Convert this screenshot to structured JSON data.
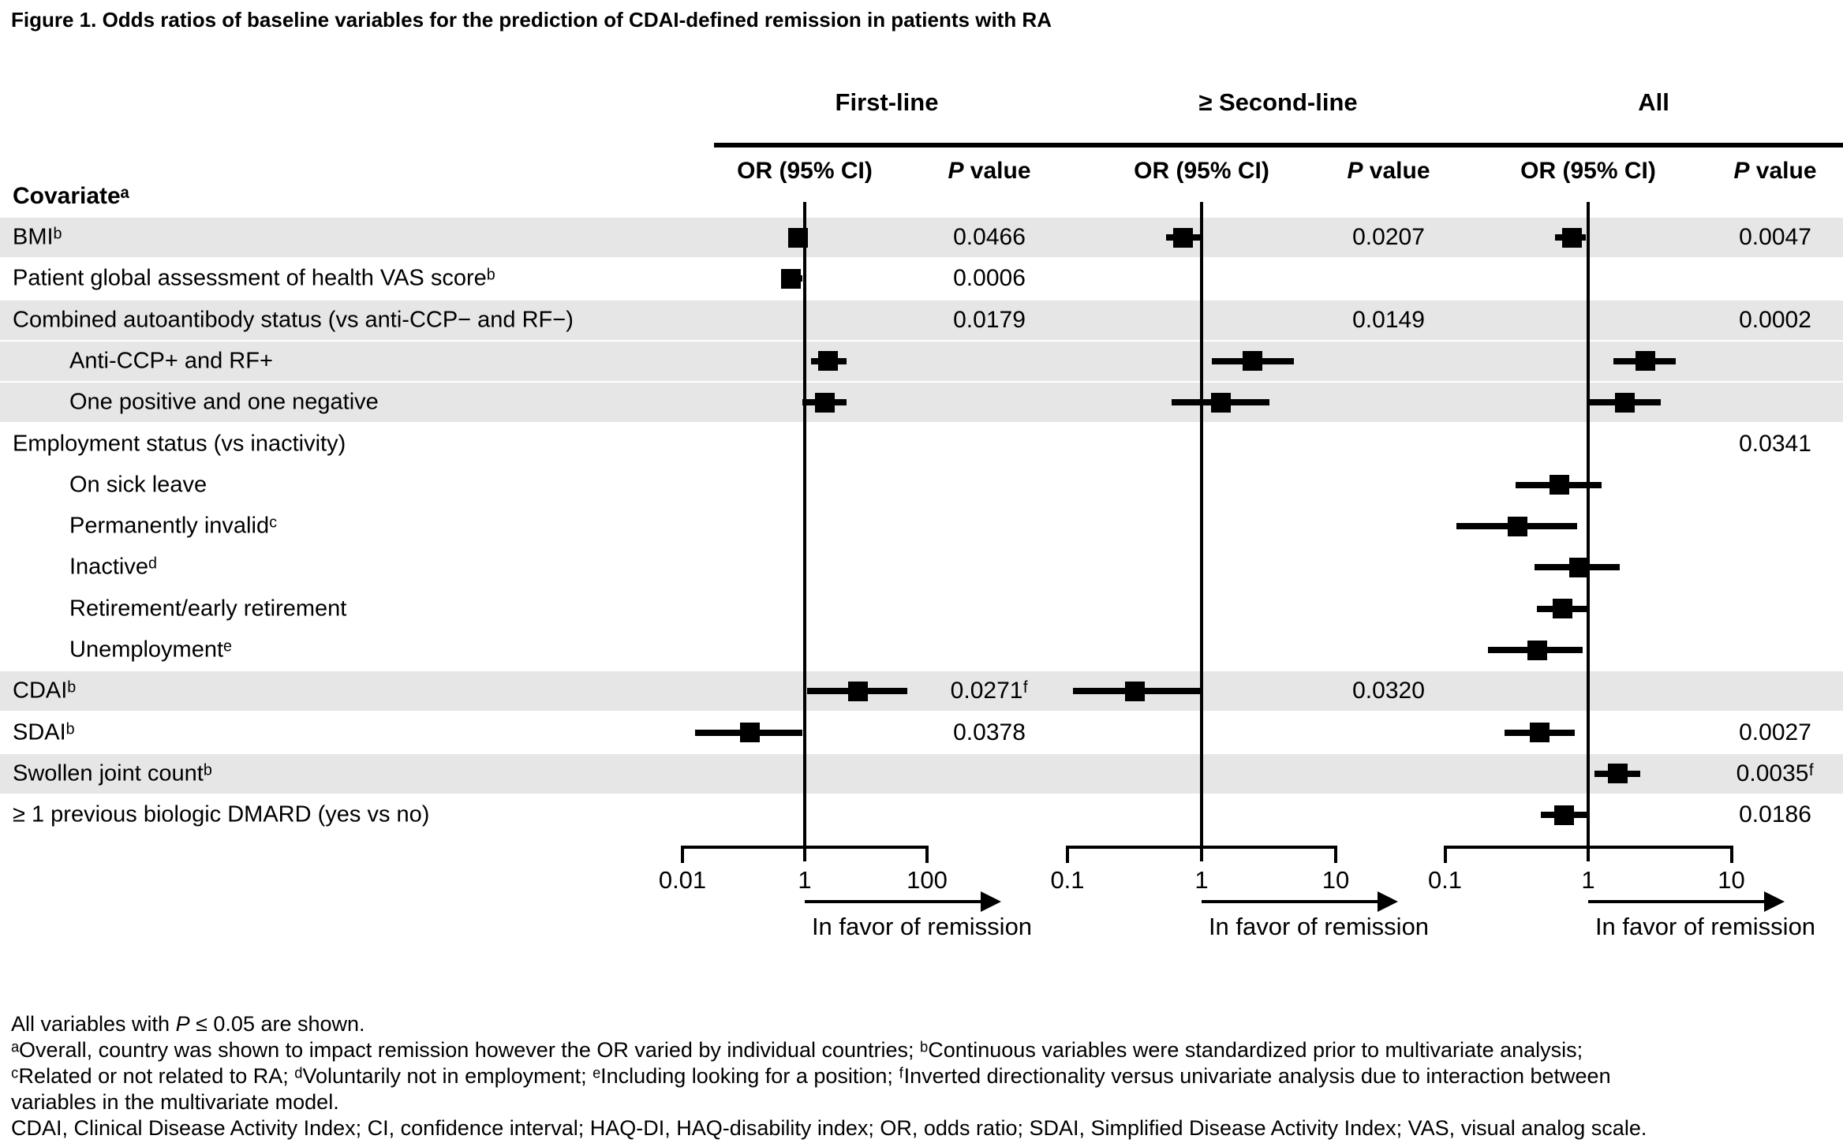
{
  "title": "Figure 1. Odds ratios of baseline variables for the prediction of CDAI-defined remission in patients with RA",
  "table_header": {
    "covariate": "Covariateᵃ",
    "or_label": "OR (95% CI)",
    "p_italic": "P",
    "p_rest": " value"
  },
  "chart_data": {
    "type": "forest",
    "title": "Odds ratios of baseline variables for the prediction of CDAI-defined remission in patients with RA",
    "stripe_color": "#e6e6e6",
    "marker_color": "#000000",
    "panels": [
      {
        "key": "first_line",
        "label": "First-line",
        "axis_range": [
          0.01,
          100
        ],
        "ticks": [
          0.01,
          1,
          100
        ],
        "tick_labels": [
          "0.01",
          "1",
          "100"
        ],
        "arrow_label": "In favor of remission"
      },
      {
        "key": "second_line",
        "label": "≥ Second-line",
        "axis_range": [
          0.1,
          10
        ],
        "ticks": [
          0.1,
          1,
          10
        ],
        "tick_labels": [
          "0.1",
          "1",
          "10"
        ],
        "arrow_label": "In favor of remission"
      },
      {
        "key": "all",
        "label": "All",
        "axis_range": [
          0.1,
          10
        ],
        "ticks": [
          0.1,
          1,
          10
        ],
        "tick_labels": [
          "0.1",
          "1",
          "10"
        ],
        "arrow_label": "In favor of remission"
      }
    ],
    "rows": [
      {
        "label": "BMIᵇ",
        "indent": false,
        "shaded": true,
        "first_line": {
          "or": 0.78,
          "lo": 0.55,
          "hi": 1.03,
          "p": "0.0466"
        },
        "second_line": {
          "or": 0.73,
          "lo": 0.54,
          "hi": 0.99,
          "p": "0.0207"
        },
        "all": {
          "or": 0.77,
          "lo": 0.59,
          "hi": 0.96,
          "p": "0.0047"
        }
      },
      {
        "label": "Patient global assessment of health VAS scoreᵇ",
        "indent": false,
        "shaded": false,
        "first_line": {
          "or": 0.59,
          "lo": 0.41,
          "hi": 0.92,
          "p": "0.0006"
        }
      },
      {
        "label": "Combined autoantibody status (vs anti-CCP− and RF−)",
        "indent": false,
        "shaded": true,
        "first_line": {
          "p": "0.0179"
        },
        "second_line": {
          "p": "0.0149"
        },
        "all": {
          "p": "0.0002"
        }
      },
      {
        "label": "Anti-CCP+ and RF+",
        "indent": true,
        "shaded": true,
        "first_line": {
          "or": 2.4,
          "lo": 1.25,
          "hi": 4.8
        },
        "second_line": {
          "or": 2.4,
          "lo": 1.2,
          "hi": 4.9
        },
        "all": {
          "or": 2.5,
          "lo": 1.5,
          "hi": 4.1
        }
      },
      {
        "label": "One positive and one negative",
        "indent": true,
        "shaded": true,
        "first_line": {
          "or": 2.15,
          "lo": 0.92,
          "hi": 4.8
        },
        "second_line": {
          "or": 1.4,
          "lo": 0.6,
          "hi": 3.2
        },
        "all": {
          "or": 1.8,
          "lo": 1.0,
          "hi": 3.2
        }
      },
      {
        "label": "Employment status (vs inactivity)",
        "indent": false,
        "shaded": false,
        "all": {
          "p": "0.0341"
        }
      },
      {
        "label": "On sick leave",
        "indent": true,
        "shaded": false,
        "all": {
          "or": 0.63,
          "lo": 0.31,
          "hi": 1.24
        }
      },
      {
        "label": "Permanently invalidᶜ",
        "indent": true,
        "shaded": false,
        "all": {
          "or": 0.32,
          "lo": 0.12,
          "hi": 0.84
        }
      },
      {
        "label": "Inactiveᵈ",
        "indent": true,
        "shaded": false,
        "all": {
          "or": 0.86,
          "lo": 0.42,
          "hi": 1.66
        }
      },
      {
        "label": "Retirement/early retirement",
        "indent": true,
        "shaded": false,
        "all": {
          "or": 0.66,
          "lo": 0.44,
          "hi": 1.0
        }
      },
      {
        "label": "Unemploymentᵉ",
        "indent": true,
        "shaded": false,
        "all": {
          "or": 0.44,
          "lo": 0.2,
          "hi": 0.92
        }
      },
      {
        "label": "CDAIᵇ",
        "indent": false,
        "shaded": true,
        "first_line": {
          "or": 7.5,
          "lo": 1.1,
          "hi": 47,
          "p": "0.0271ᶠ"
        },
        "second_line": {
          "or": 0.32,
          "lo": 0.11,
          "hi": 0.99,
          "p": "0.0320"
        }
      },
      {
        "label": "SDAIᵇ",
        "indent": false,
        "shaded": false,
        "first_line": {
          "or": 0.125,
          "lo": 0.016,
          "hi": 0.92,
          "p": "0.0378"
        },
        "all": {
          "or": 0.46,
          "lo": 0.26,
          "hi": 0.81,
          "p": "0.0027"
        }
      },
      {
        "label": "Swollen joint countᵇ",
        "indent": false,
        "shaded": true,
        "all": {
          "or": 1.6,
          "lo": 1.1,
          "hi": 2.3,
          "p": "0.0035ᶠ"
        }
      },
      {
        "label": "≥ 1 previous biologic DMARD (yes vs no)",
        "indent": false,
        "shaded": false,
        "all": {
          "or": 0.68,
          "lo": 0.47,
          "hi": 0.97,
          "p": "0.0186"
        }
      }
    ]
  },
  "footnotes": {
    "line1_pre": "All variables with ",
    "line1_italic": "P",
    "line1_post": " ≤ 0.05 are shown.",
    "line2": "ᵃOverall, country was shown to impact remission however the OR varied by individual countries; ᵇContinuous variables were standardized prior to multivariate analysis;",
    "line3": "ᶜRelated or not related to RA; ᵈVoluntarily not in employment; ᵉIncluding looking for a position; ᶠInverted directionality versus univariate analysis due to interaction between",
    "line4": "variables in the multivariate model.",
    "line5": "CDAI, Clinical Disease Activity Index; CI, confidence interval; HAQ-DI, HAQ-disability index; OR, odds ratio; SDAI, Simplified Disease Activity Index; VAS, visual analog scale."
  }
}
